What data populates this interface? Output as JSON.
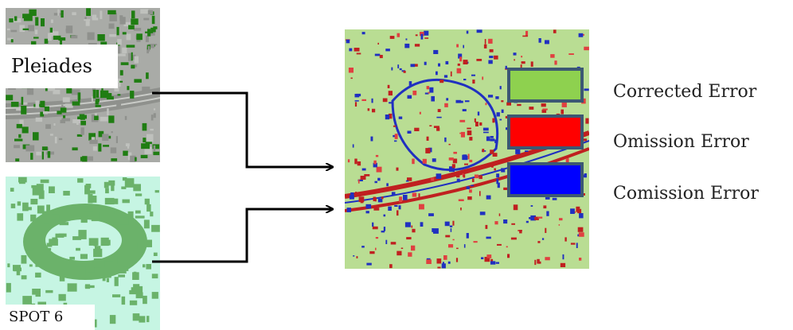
{
  "panels": {
    "top_label": "Pleiades",
    "bottom_label": "SPOT 6"
  },
  "legend": [
    {
      "label": "Corrected Error",
      "color": "#8ed14f"
    },
    {
      "label": "Omission Error",
      "color": "#ff0000"
    },
    {
      "label": "Comission Error",
      "color": "#0000ff"
    }
  ],
  "colors": {
    "pleiades_background": "#a9aba7",
    "pleiades_vegetation": "#1f7d12",
    "spot_background": "#c6f5e3",
    "spot_vegetation": "#6bb26a",
    "result_background": "#b9dd93",
    "swatch_border": "#3c5873",
    "arrow": "#000000"
  }
}
